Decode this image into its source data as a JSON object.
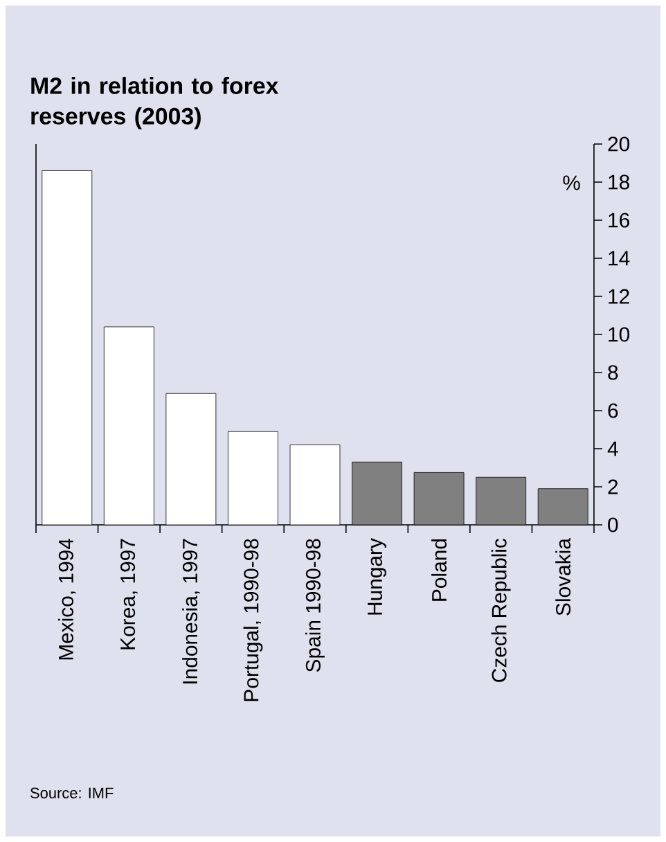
{
  "chart_data": {
    "type": "bar",
    "title": "M2 in relation to forex reserves (2003)",
    "categories": [
      "Mexico, 1994",
      "Korea, 1997",
      "Indonesia, 1997",
      "Portugal, 1990-98",
      "Spain 1990-98",
      "Hungary",
      "Poland",
      "Czech Republic",
      "Slovakia"
    ],
    "values": [
      18.6,
      10.4,
      6.9,
      4.9,
      4.2,
      3.3,
      2.75,
      2.5,
      1.9
    ],
    "colors": [
      "#ffffff",
      "#ffffff",
      "#ffffff",
      "#ffffff",
      "#ffffff",
      "#808080",
      "#808080",
      "#808080",
      "#808080"
    ],
    "ylim": [
      0,
      20
    ],
    "yticks": [
      0,
      2,
      4,
      6,
      8,
      10,
      12,
      14,
      16,
      18,
      20
    ],
    "annotations": [
      "%",
      "Source: IMF"
    ]
  }
}
